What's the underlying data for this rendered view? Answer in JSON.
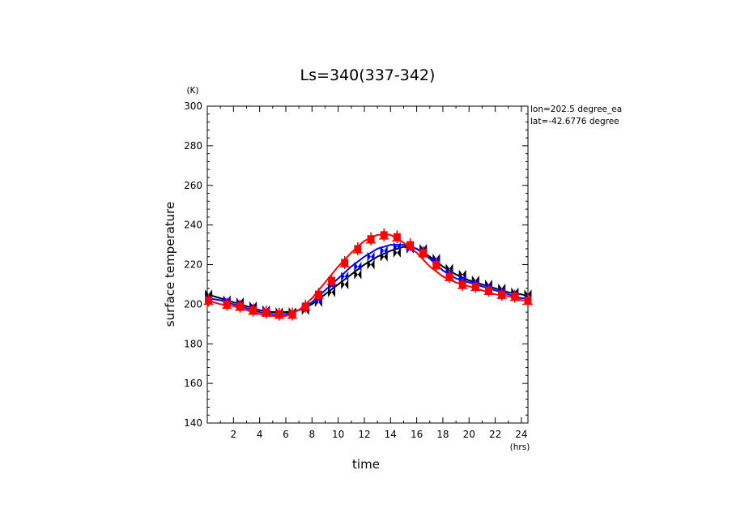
{
  "chart_data": {
    "type": "line",
    "title": "Ls=340(337-342)",
    "xlabel": "time",
    "ylabel": "surface temperature",
    "x_unit": "(hrs)",
    "y_unit": "(K)",
    "annotations": [
      "lon=202.5 degree_ea",
      "lat=-42.6776 degree"
    ],
    "xlim": [
      0,
      24.5
    ],
    "ylim": [
      140,
      300
    ],
    "x_ticks": [
      2,
      4,
      6,
      8,
      10,
      12,
      14,
      16,
      18,
      20,
      22,
      24
    ],
    "y_ticks": [
      140,
      160,
      180,
      200,
      220,
      240,
      260,
      280,
      300
    ],
    "x": [
      0,
      1,
      2,
      3,
      4,
      5,
      6,
      7,
      8,
      9,
      10,
      11,
      12,
      13,
      14,
      15,
      16,
      17,
      18,
      19,
      20,
      21,
      22,
      23,
      24,
      24.5
    ],
    "series": [
      {
        "color": "#000000",
        "marker": "bowtie",
        "values": [
          205,
          203,
          201,
          199,
          197,
          196,
          196,
          197,
          200,
          205,
          210,
          215,
          220,
          224,
          227,
          229,
          228,
          224,
          219,
          215,
          212,
          210,
          208,
          206,
          205,
          204
        ],
        "markers": [
          {
            "x": 0.1,
            "y": 205
          },
          {
            "x": 1.5,
            "y": 202
          },
          {
            "x": 2.5,
            "y": 201
          },
          {
            "x": 3.5,
            "y": 199
          },
          {
            "x": 4.5,
            "y": 197
          },
          {
            "x": 5.5,
            "y": 196
          },
          {
            "x": 6.5,
            "y": 196
          },
          {
            "x": 7.5,
            "y": 197
          },
          {
            "x": 8.5,
            "y": 201
          },
          {
            "x": 9.5,
            "y": 206
          },
          {
            "x": 10.5,
            "y": 210
          },
          {
            "x": 11.5,
            "y": 215
          },
          {
            "x": 12.5,
            "y": 220
          },
          {
            "x": 13.5,
            "y": 224
          },
          {
            "x": 14.5,
            "y": 226
          },
          {
            "x": 15.5,
            "y": 228
          },
          {
            "x": 16.5,
            "y": 228
          },
          {
            "x": 17.5,
            "y": 223
          },
          {
            "x": 18.5,
            "y": 218
          },
          {
            "x": 19.5,
            "y": 215
          },
          {
            "x": 20.5,
            "y": 212
          },
          {
            "x": 21.5,
            "y": 210
          },
          {
            "x": 22.5,
            "y": 208
          },
          {
            "x": 23.5,
            "y": 206
          },
          {
            "x": 24.5,
            "y": 205
          }
        ]
      },
      {
        "color": "#0000ff",
        "marker": "bowtie",
        "values": [
          203,
          202,
          200,
          198,
          196,
          195,
          195,
          197,
          201,
          207,
          213,
          219,
          224,
          228,
          230,
          230,
          228,
          223,
          217,
          213,
          211,
          209,
          207,
          205,
          203,
          203
        ],
        "markers": [
          {
            "x": 0.1,
            "y": 203
          },
          {
            "x": 1.5,
            "y": 202
          },
          {
            "x": 2.5,
            "y": 200
          },
          {
            "x": 3.5,
            "y": 198
          },
          {
            "x": 4.5,
            "y": 197
          },
          {
            "x": 5.5,
            "y": 195
          },
          {
            "x": 6.5,
            "y": 195
          },
          {
            "x": 7.5,
            "y": 198
          },
          {
            "x": 8.5,
            "y": 202
          },
          {
            "x": 9.5,
            "y": 209
          },
          {
            "x": 10.5,
            "y": 214
          },
          {
            "x": 11.5,
            "y": 219
          },
          {
            "x": 12.5,
            "y": 224
          },
          {
            "x": 13.5,
            "y": 227
          },
          {
            "x": 14.5,
            "y": 229
          },
          {
            "x": 15.5,
            "y": 228
          },
          {
            "x": 16.5,
            "y": 227
          },
          {
            "x": 17.5,
            "y": 222
          },
          {
            "x": 18.5,
            "y": 216
          },
          {
            "x": 19.5,
            "y": 213
          },
          {
            "x": 20.5,
            "y": 211
          },
          {
            "x": 21.5,
            "y": 209
          },
          {
            "x": 22.5,
            "y": 207
          },
          {
            "x": 23.5,
            "y": 205
          },
          {
            "x": 24.5,
            "y": 203
          }
        ]
      },
      {
        "color": "#ff0000",
        "marker": "square",
        "values": [
          202,
          200,
          199,
          197,
          195,
          194,
          194,
          197,
          203,
          211,
          219,
          226,
          232,
          235,
          235,
          231,
          226,
          219,
          214,
          211,
          209,
          207,
          205,
          204,
          202,
          202
        ],
        "markers": [
          {
            "x": 0.1,
            "y": 202
          },
          {
            "x": 1.5,
            "y": 200
          },
          {
            "x": 2.5,
            "y": 199
          },
          {
            "x": 3.5,
            "y": 197
          },
          {
            "x": 4.5,
            "y": 196
          },
          {
            "x": 5.5,
            "y": 195
          },
          {
            "x": 6.5,
            "y": 195
          },
          {
            "x": 7.5,
            "y": 199
          },
          {
            "x": 8.5,
            "y": 205
          },
          {
            "x": 9.5,
            "y": 212
          },
          {
            "x": 10.5,
            "y": 221
          },
          {
            "x": 11.5,
            "y": 228
          },
          {
            "x": 12.5,
            "y": 233
          },
          {
            "x": 13.5,
            "y": 235
          },
          {
            "x": 14.5,
            "y": 234
          },
          {
            "x": 15.5,
            "y": 230
          },
          {
            "x": 16.5,
            "y": 226
          },
          {
            "x": 17.5,
            "y": 220
          },
          {
            "x": 18.5,
            "y": 214
          },
          {
            "x": 19.5,
            "y": 210
          },
          {
            "x": 20.5,
            "y": 209
          },
          {
            "x": 21.5,
            "y": 207
          },
          {
            "x": 22.5,
            "y": 205
          },
          {
            "x": 23.5,
            "y": 204
          },
          {
            "x": 24.5,
            "y": 202
          }
        ]
      }
    ]
  }
}
